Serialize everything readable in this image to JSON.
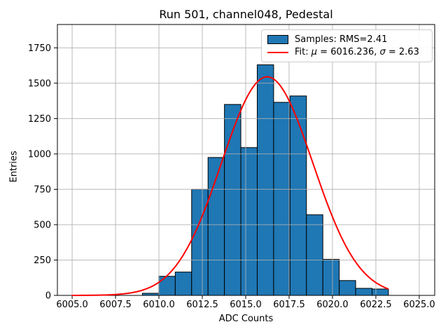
{
  "chart_data": {
    "type": "histogram",
    "title": "Run 501, channel048, Pedestal",
    "xlabel": "ADC Counts",
    "ylabel": "Entries",
    "xlim": [
      6004.15,
      6025.89
    ],
    "ylim": [
      0,
      1915
    ],
    "grid": true,
    "grid_color": "#b0b0b0",
    "bar_color": "#1f77b4",
    "bar_edge_color": "#000000",
    "bins": {
      "edges": [
        6009.05,
        6009.995,
        6010.94,
        6011.885,
        6012.83,
        6013.775,
        6014.72,
        6015.665,
        6016.61,
        6017.555,
        6018.5,
        6019.445,
        6020.39,
        6021.335,
        6022.28,
        6023.225
      ],
      "counts": [
        15,
        135,
        165,
        750,
        975,
        1350,
        1045,
        1630,
        1365,
        1410,
        570,
        255,
        105,
        50,
        45
      ]
    },
    "fit": {
      "mu": 6016.236,
      "sigma": 2.63,
      "amplitude": 1545,
      "x_start": 6005.0,
      "x_end": 6023.225,
      "color": "#ff0000",
      "linewidth": 2
    },
    "xticks": {
      "values": [
        6005.0,
        6007.5,
        6010.0,
        6012.5,
        6015.0,
        6017.5,
        6020.0,
        6022.5,
        6025.0
      ],
      "labels": [
        "6005.0",
        "6007.5",
        "6010.0",
        "6012.5",
        "6015.0",
        "6017.5",
        "6020.0",
        "6022.5",
        "6025.0"
      ]
    },
    "yticks": {
      "values": [
        0,
        250,
        500,
        750,
        1000,
        1250,
        1500,
        1750
      ],
      "labels": [
        "0",
        "250",
        "500",
        "750",
        "1000",
        "1250",
        "1500",
        "1750"
      ]
    },
    "legend": {
      "position": "upper right",
      "entries": [
        {
          "label": "Samples: RMS=2.41",
          "type": "patch",
          "color": "#1f77b4"
        },
        {
          "label": "Fit: μ = 6016.236, σ = 2.63",
          "type": "line",
          "color": "#ff0000"
        }
      ]
    }
  }
}
